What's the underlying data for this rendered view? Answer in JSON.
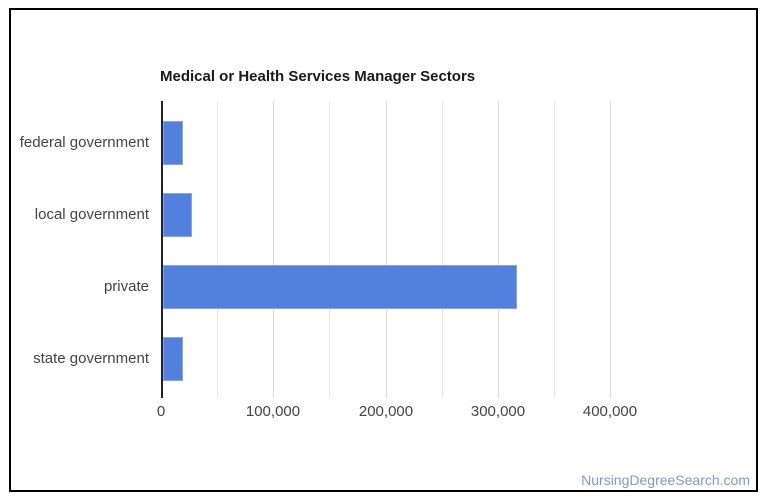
{
  "chart_data": {
    "type": "bar",
    "orientation": "horizontal",
    "title": "Medical or Health Services Manager Sectors",
    "categories": [
      "federal government",
      "local government",
      "private",
      "state government"
    ],
    "values": [
      18000,
      26000,
      315000,
      17500
    ],
    "xlabel": "",
    "ylabel": "",
    "xlim": [
      0,
      400000
    ],
    "x_major_ticks": [
      0,
      100000,
      200000,
      300000,
      400000
    ],
    "x_tick_labels": [
      "0",
      "100,000",
      "200,000",
      "300,000",
      "400,000"
    ],
    "x_minor_step": 50000,
    "grid": true,
    "legend": "none",
    "colors": {
      "bar": "#5280df",
      "bar_border": "#85a5eb",
      "axis": "#222222",
      "major_grid": "#dcdcdc",
      "minor_grid": "#e8e8e8",
      "label": "#444444",
      "title": "#1a1a1a",
      "card_border": "#000000",
      "watermark": "#7d9ad1"
    }
  },
  "watermark": {
    "text": "NursingDegreeSearch.com"
  }
}
